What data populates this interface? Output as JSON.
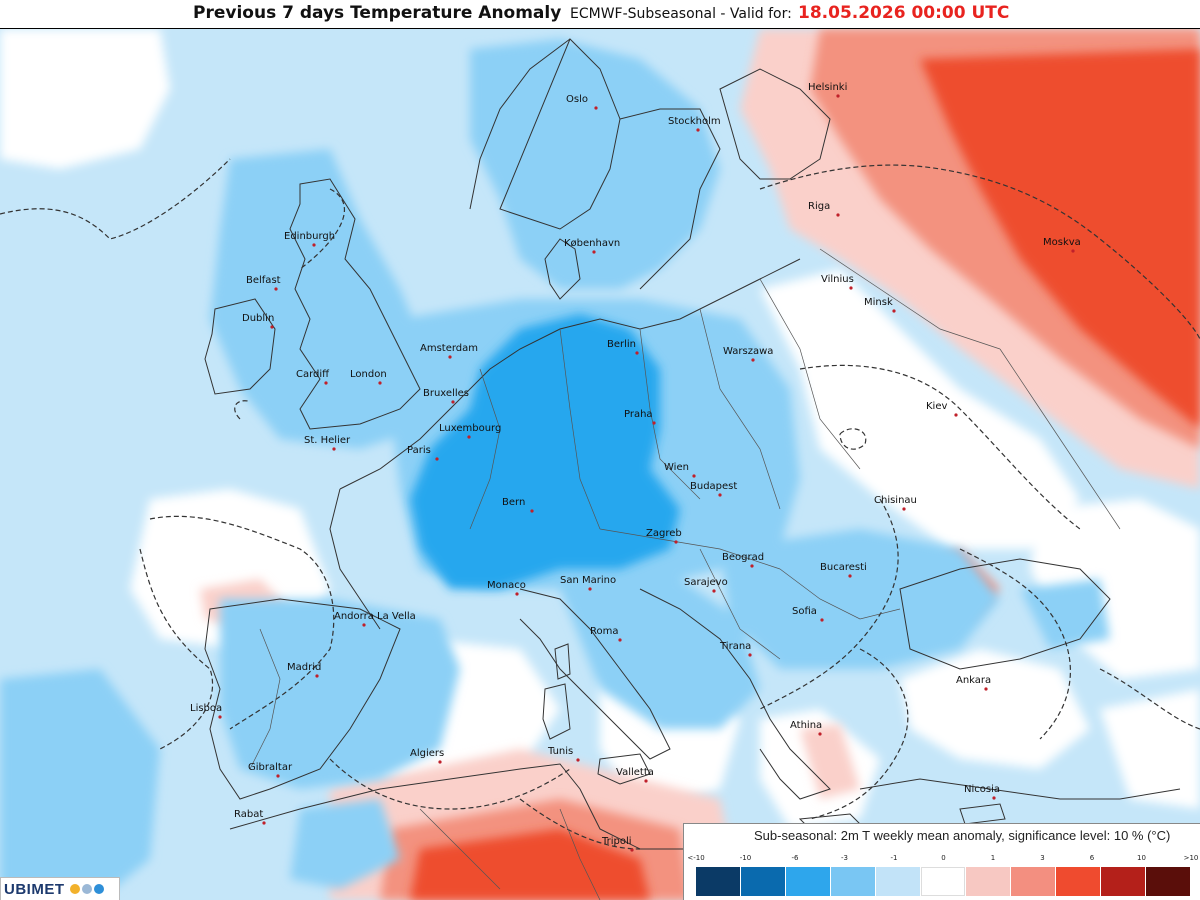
{
  "header": {
    "title": "Previous 7 days Temperature Anomaly",
    "model": "ECMWF-Subseasonal - Valid for:",
    "valid_date": "18.05.2026 00:00 UTC"
  },
  "legend": {
    "title": "Sub-seasonal: 2m T weekly mean anomaly, significance level: 10 % (°C)",
    "ticks": [
      "<-10",
      "-10",
      "-6",
      "-3",
      "-1",
      "0",
      "1",
      "3",
      "6",
      "10",
      ">10"
    ],
    "colors": [
      "#0b3a66",
      "#0a6aae",
      "#2ea6ec",
      "#79c6f3",
      "#c2e3f8",
      "#ffffff",
      "#f7c8c2",
      "#f38f80",
      "#ef4b2f",
      "#b4201a",
      "#5a0e0a"
    ]
  },
  "map_colors": {
    "sea_light_blue": "#c5e6f9",
    "mid_blue": "#8cd0f6",
    "strong_blue": "#27a7ee",
    "light_red": "#fad0ca",
    "mid_red": "#f3927f",
    "strong_red": "#ee4e2f",
    "border": "#333333",
    "significance": "#333333"
  },
  "cities": [
    "Oslo",
    "Stockholm",
    "Helsinki",
    "Edinburgh",
    "Belfast",
    "Dublin",
    "Riga",
    "København",
    "Moskva",
    "Vilnius",
    "Minsk",
    "Amsterdam",
    "Berlin",
    "Warszawa",
    "Cardiff",
    "London",
    "Bruxelles",
    "Praha",
    "Kiev",
    "Luxembourg",
    "St. Helier",
    "Paris",
    "Wien",
    "Budapest",
    "Chisinau",
    "Bern",
    "Zagreb",
    "Beograd",
    "Bucaresti",
    "Monaco",
    "San Marino",
    "Sarajevo",
    "Andorra La Vella",
    "Sofia",
    "Roma",
    "Tirana",
    "Madrid",
    "Ankara",
    "Lisboa",
    "Athina",
    "Algiers",
    "Tunis",
    "Gibraltar",
    "Valletta",
    "Nicosia",
    "Rabat",
    "Tripoli"
  ],
  "logo": {
    "text": "UBIMET",
    "icons": [
      "sun-icon",
      "cloud-icon",
      "drop-icon"
    ]
  }
}
